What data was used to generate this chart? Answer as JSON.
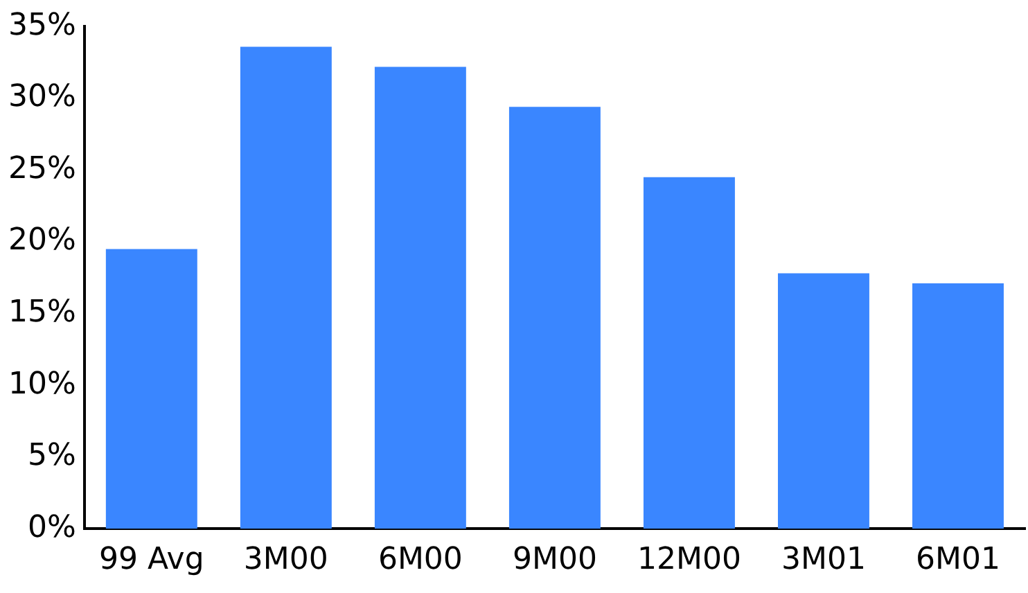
{
  "chart_data": {
    "type": "bar",
    "categories": [
      "99 Avg",
      "3M00",
      "6M00",
      "9M00",
      "12M00",
      "3M01",
      "6M01"
    ],
    "values": [
      19.5,
      33.6,
      32.2,
      29.4,
      24.5,
      17.8,
      17.1
    ],
    "color": "#3a86ff",
    "ylim": [
      0,
      35
    ],
    "yticks": [
      {
        "value": 0,
        "label": "0%"
      },
      {
        "value": 5,
        "label": "5%"
      },
      {
        "value": 10,
        "label": "10%"
      },
      {
        "value": 15,
        "label": "15%"
      },
      {
        "value": 20,
        "label": "20%"
      },
      {
        "value": 25,
        "label": "25%"
      },
      {
        "value": 30,
        "label": "30%"
      },
      {
        "value": 35,
        "label": "35%"
      }
    ],
    "grid": false
  }
}
